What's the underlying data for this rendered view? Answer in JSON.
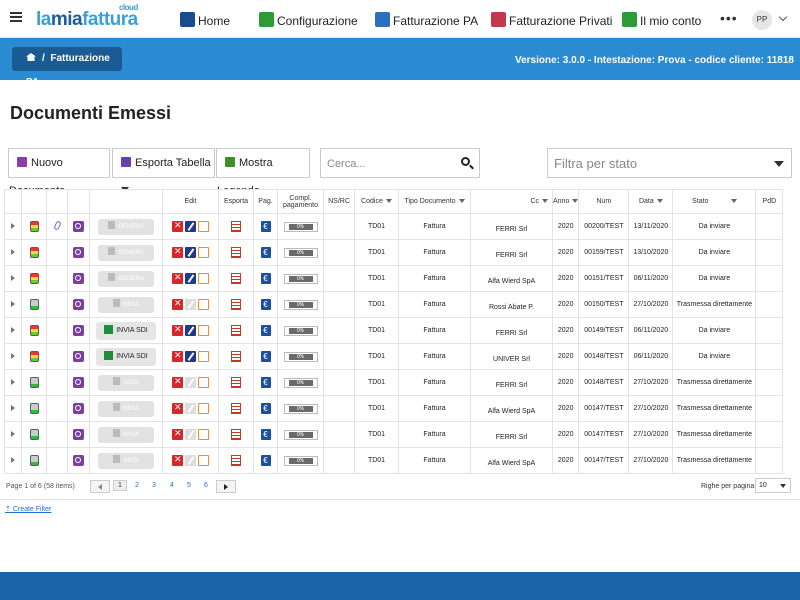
{
  "app": {
    "logo_main": "lamiafattura",
    "logo_sup": "cloud",
    "nav": [
      {
        "label": "Home",
        "icon": "home-icon"
      },
      {
        "label": "Configurazione",
        "icon": "puzzle-icon"
      },
      {
        "label": "Fatturazione PA",
        "icon": "invoice-pa-icon"
      },
      {
        "label": "Fatturazione Privati",
        "icon": "invoice-privati-icon"
      },
      {
        "label": "Il mio conto",
        "icon": "chart-icon"
      }
    ],
    "more": "•••",
    "avatar": "PP"
  },
  "breadcrumb": {
    "label": "Fatturazione PA"
  },
  "version": "Versione: 3.0.0 - Intestazione: Prova - codice cliente: 11818",
  "page_title": "Documenti Emessi",
  "toolbar": {
    "new_doc": "Nuovo Documento",
    "export": "Esporta Tabella",
    "legend": "Mostra Legenda",
    "search_placeholder": "Cerca...",
    "status_filter_placeholder": "Filtra per stato"
  },
  "columns": {
    "edit": "Edit",
    "esporta": "Esporta",
    "pag": "Pag.",
    "compl1": "Compl.",
    "compl2": "pagamento",
    "nsrc": "NS/RC",
    "codice": "Codice",
    "tipo": "Tipo Documento",
    "cc": "Cc",
    "anno": "Anno",
    "num": "Num",
    "data": "Data",
    "stato": "Stato",
    "pdd": "PdD"
  },
  "rows": [
    {
      "sem": "red",
      "clip": true,
      "action": "GENERA",
      "edit": "active",
      "progress": "0%",
      "codice": "TD01",
      "tipo": "Fattura",
      "cc": "FERRI Srl",
      "anno": "2020",
      "num": "00200/TEST",
      "data": "13/11/2020",
      "stato": "Da inviare"
    },
    {
      "sem": "red",
      "clip": false,
      "action": "GENERA",
      "edit": "active",
      "progress": "0%",
      "codice": "TD01",
      "tipo": "Fattura",
      "cc": "FERRI Srl",
      "anno": "2020",
      "num": "00159/TEST",
      "data": "13/10/2020",
      "stato": "Da inviare"
    },
    {
      "sem": "red",
      "clip": false,
      "action": "GENERA",
      "edit": "active",
      "progress": "0%",
      "codice": "TD01",
      "tipo": "Fattura",
      "cc": "Alfa Wierd SpA",
      "anno": "2020",
      "num": "00151/TEST",
      "data": "06/11/2020",
      "stato": "Da inviare"
    },
    {
      "sem": "green",
      "clip": false,
      "action": "INVIA",
      "edit": "muted",
      "progress": "0%",
      "codice": "TD01",
      "tipo": "Fattura",
      "cc": "Rossi Abate P.",
      "anno": "2020",
      "num": "00150/TEST",
      "data": "27/10/2020",
      "stato": "Trasmessa direttamente"
    },
    {
      "sem": "red",
      "clip": false,
      "action": "INVIA SDI",
      "edit": "active",
      "progress": "0%",
      "codice": "TD01",
      "tipo": "Fattura",
      "cc": "FERRI Srl",
      "anno": "2020",
      "num": "00149/TEST",
      "data": "06/11/2020",
      "stato": "Da inviare"
    },
    {
      "sem": "red",
      "clip": false,
      "action": "INVIA SDI",
      "edit": "active",
      "progress": "0%",
      "codice": "TD01",
      "tipo": "Fattura",
      "cc": "UNIVER Srl",
      "anno": "2020",
      "num": "00148/TEST",
      "data": "06/11/2020",
      "stato": "Da inviare"
    },
    {
      "sem": "green",
      "clip": false,
      "action": "INVIA",
      "edit": "muted",
      "progress": "0%",
      "codice": "TD01",
      "tipo": "Fattura",
      "cc": "FERRI Srl",
      "anno": "2020",
      "num": "00148/TEST",
      "data": "27/10/2020",
      "stato": "Trasmessa direttamente"
    },
    {
      "sem": "green",
      "clip": false,
      "action": "INVIA",
      "edit": "muted",
      "progress": "0%",
      "codice": "TD01",
      "tipo": "Fattura",
      "cc": "Alfa Wierd SpA",
      "anno": "2020",
      "num": "00147/TEST",
      "data": "27/10/2020",
      "stato": "Trasmessa direttamente"
    },
    {
      "sem": "green",
      "clip": false,
      "action": "INVIA",
      "edit": "muted",
      "progress": "0%",
      "codice": "TD01",
      "tipo": "Fattura",
      "cc": "FERRI Srl",
      "anno": "2020",
      "num": "00147/TEST",
      "data": "27/10/2020",
      "stato": "Trasmessa direttamente"
    },
    {
      "sem": "green",
      "clip": false,
      "action": "INVIA",
      "edit": "muted",
      "progress": "0%",
      "codice": "TD01",
      "tipo": "Fattura",
      "cc": "Alfa Wierd SpA",
      "anno": "2020",
      "num": "00147/TEST",
      "data": "27/10/2020",
      "stato": "Trasmessa direttamente"
    }
  ],
  "pager": {
    "info": "Page 1 of 6 (58 items)",
    "pages": [
      "1",
      "2",
      "3",
      "4",
      "5",
      "6"
    ],
    "rows_per_page_label": "Righe per pagina",
    "rows_per_page": "10"
  },
  "create_filter": "Create Filter",
  "colors": {
    "accent": "#2a8ad2",
    "footer": "#1a63a8",
    "crumb": "#1a5b93"
  }
}
